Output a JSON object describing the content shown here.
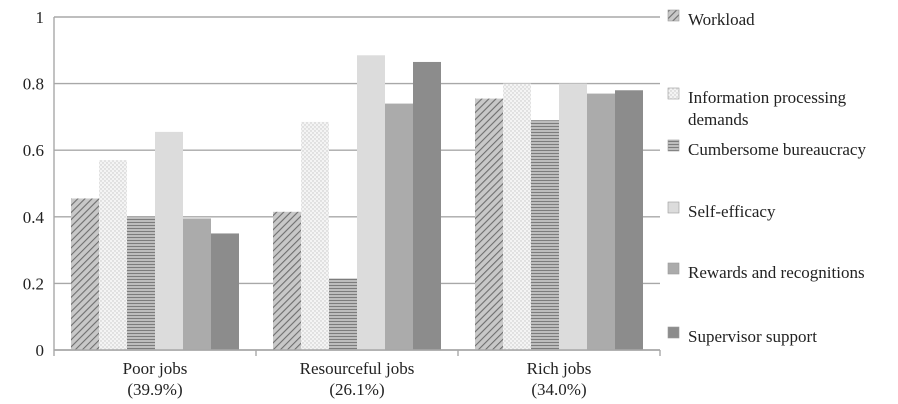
{
  "chart_data": {
    "type": "bar",
    "title": "",
    "xlabel": "",
    "ylabel": "",
    "ylim": [
      0,
      1
    ],
    "yticks": [
      0,
      0.2,
      0.4,
      0.6,
      0.8,
      1
    ],
    "ytick_labels": [
      "0",
      "0.2",
      "0.4",
      "0.6",
      "0.8",
      "1"
    ],
    "grid": true,
    "legend_position": "right",
    "categories": [
      [
        "Poor jobs",
        "(39.9%)"
      ],
      [
        "Resourceful jobs",
        "(26.1%)"
      ],
      [
        "Rich jobs",
        "(34.0%)"
      ]
    ],
    "series": [
      {
        "name": "Workload",
        "values": [
          0.455,
          0.415,
          0.755
        ],
        "pattern": "diagonal",
        "color": "#7a7a7a"
      },
      {
        "name": [
          "Information processing",
          "demands"
        ],
        "values": [
          0.57,
          0.685,
          0.8
        ],
        "pattern": "dots",
        "color": "#ebebeb"
      },
      {
        "name": "Cumbersome bureaucracy",
        "values": [
          0.4,
          0.215,
          0.69
        ],
        "pattern": "hlines",
        "color": "#9a9a9a"
      },
      {
        "name": "Self-efficacy",
        "values": [
          0.655,
          0.885,
          0.8
        ],
        "pattern": "solid",
        "color": "#dcdcdc"
      },
      {
        "name": "Rewards and recognitions",
        "values": [
          0.395,
          0.74,
          0.77
        ],
        "pattern": "solid",
        "color": "#ababab"
      },
      {
        "name": "Supervisor support",
        "values": [
          0.35,
          0.865,
          0.78
        ],
        "pattern": "solid",
        "color": "#8c8c8c"
      }
    ]
  }
}
